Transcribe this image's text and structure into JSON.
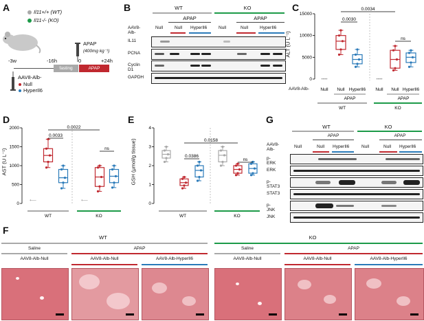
{
  "panels": {
    "A": "A",
    "B": "B",
    "C": "C",
    "D": "D",
    "E": "E",
    "F": "F",
    "G": "G"
  },
  "panelA": {
    "legend_wt": "Il11+/+ (WT)",
    "legend_ko": "Il11-/- (KO)",
    "apap": "APAP",
    "dose": "(400mg kg⁻¹)",
    "t_m3w": "-3w",
    "t_m16h": "-16h",
    "t_0": "0",
    "t_24h": "+24h",
    "fasting": "fasting",
    "apap_box": "APAP",
    "aav": "AAV8-Alb-",
    "null": "Null",
    "hyper": "HyperIl6",
    "colors": {
      "wt": "#a9a9a9",
      "ko": "#1c9a48",
      "red": "#c0282f",
      "blue": "#2a7ab9"
    }
  },
  "panelB": {
    "wt": "WT",
    "ko": "KO",
    "apap1": "APAP",
    "apap2": "APAP",
    "aav": "AAV8-Alb-",
    "col_labels": [
      "Null",
      "Null",
      "HyperIl6",
      "Null",
      "Null",
      "HyperIl6"
    ],
    "rows": [
      "IL11",
      "PCNA",
      "Cyclin D1",
      "GAPDH"
    ]
  },
  "panelC": {
    "ylabel": "ALT (U L⁻¹)",
    "yticks": [
      "0",
      "5000",
      "10000",
      "15000"
    ],
    "p1": "0.0030",
    "p2": "0.0034",
    "p3": "ns",
    "aav": "AAV8-Alb-",
    "xlabels": [
      "Null",
      "Null",
      "HyperIl6",
      "Null",
      "Null",
      "HyperIl6"
    ],
    "apap_wt": "APAP",
    "apap_ko": "APAP",
    "wt": "WT",
    "ko": "KO"
  },
  "panelD": {
    "ylabel": "AST (U L⁻¹)",
    "yticks": [
      "0",
      "500",
      "1000",
      "1500",
      "2000"
    ],
    "p1": "0.0033",
    "p2": "0.0022",
    "p3": "ns",
    "wt": "WT",
    "ko": "KO"
  },
  "panelE": {
    "ylabel": "GSH (μmol/g tissue)",
    "yticks": [
      "0",
      "1",
      "2",
      "3",
      "4"
    ],
    "p1": "0.0386",
    "p2": "0.0158",
    "p3": "ns",
    "wt": "WT",
    "ko": "KO"
  },
  "panelG": {
    "wt": "WT",
    "ko": "KO",
    "apap1": "APAP",
    "apap2": "APAP",
    "aav": "AAV8-Alb-",
    "col_labels": [
      "Null",
      "Null",
      "HyperIl6",
      "Null",
      "Null",
      "HyperIl6"
    ],
    "rows": [
      "p-ERK",
      "ERK",
      "p-STAT3",
      "STAT3",
      "p-JNK",
      "JNK"
    ]
  },
  "panelF": {
    "wt": "WT",
    "ko": "KO",
    "saline1": "Saline",
    "apap1": "APAP",
    "saline2": "Saline",
    "apap2": "APAP",
    "img_labels": [
      "AAV8-Alb-Null",
      "AAV8-Alb-Null",
      "AAV8-Alb-HyperIl6",
      "AAV8-Alb-Null",
      "AAV8-Alb-Null",
      "AAV8-Alb-HyperIl6"
    ]
  },
  "chart_data": [
    {
      "type": "box",
      "title": "",
      "ylabel": "ALT (U L⁻¹)",
      "ylim": [
        0,
        15000
      ],
      "series": [
        {
          "name": "WT APAP Null",
          "median": 8700,
          "q1": 6800,
          "q3": 10000,
          "min": 5600,
          "max": 11200
        },
        {
          "name": "WT APAP HyperIl6",
          "median": 4500,
          "q1": 3500,
          "q3": 5600,
          "min": 2800,
          "max": 6800
        },
        {
          "name": "KO APAP Null",
          "median": 4500,
          "q1": 2500,
          "q3": 6600,
          "min": 2000,
          "max": 7600
        },
        {
          "name": "KO APAP HyperIl6",
          "median": 5000,
          "q1": 3800,
          "q3": 6000,
          "min": 2800,
          "max": 6600
        }
      ]
    },
    {
      "type": "box",
      "title": "",
      "ylabel": "AST (U L⁻¹)",
      "ylim": [
        0,
        2000
      ],
      "series": [
        {
          "name": "WT APAP Null",
          "median": 1270,
          "q1": 1100,
          "q3": 1450,
          "min": 950,
          "max": 1700
        },
        {
          "name": "WT APAP HyperIl6",
          "median": 680,
          "q1": 550,
          "q3": 900,
          "min": 400,
          "max": 1000
        },
        {
          "name": "KO APAP Null",
          "median": 700,
          "q1": 450,
          "q3": 950,
          "min": 320,
          "max": 1000
        },
        {
          "name": "KO APAP HyperIl6",
          "median": 720,
          "q1": 550,
          "q3": 900,
          "min": 420,
          "max": 1000
        }
      ]
    },
    {
      "type": "box",
      "title": "",
      "ylabel": "GSH (μmol/g tissue)",
      "ylim": [
        0,
        4
      ],
      "series": [
        {
          "name": "WT Saline Null",
          "median": 2.6,
          "q1": 2.4,
          "q3": 2.8,
          "min": 2.2,
          "max": 3.0
        },
        {
          "name": "WT APAP Null",
          "median": 1.1,
          "q1": 0.95,
          "q3": 1.3,
          "min": 0.8,
          "max": 1.4
        },
        {
          "name": "WT APAP HyperIl6",
          "median": 1.75,
          "q1": 1.4,
          "q3": 2.0,
          "min": 1.2,
          "max": 2.2
        },
        {
          "name": "KO Saline Null",
          "median": 2.55,
          "q1": 2.2,
          "q3": 2.8,
          "min": 2.0,
          "max": 3.0
        },
        {
          "name": "KO APAP Null",
          "median": 1.8,
          "q1": 1.6,
          "q3": 2.0,
          "min": 1.5,
          "max": 2.1
        },
        {
          "name": "KO APAP HyperIl6",
          "median": 1.85,
          "q1": 1.6,
          "q3": 2.1,
          "min": 1.5,
          "max": 2.2
        }
      ]
    }
  ]
}
